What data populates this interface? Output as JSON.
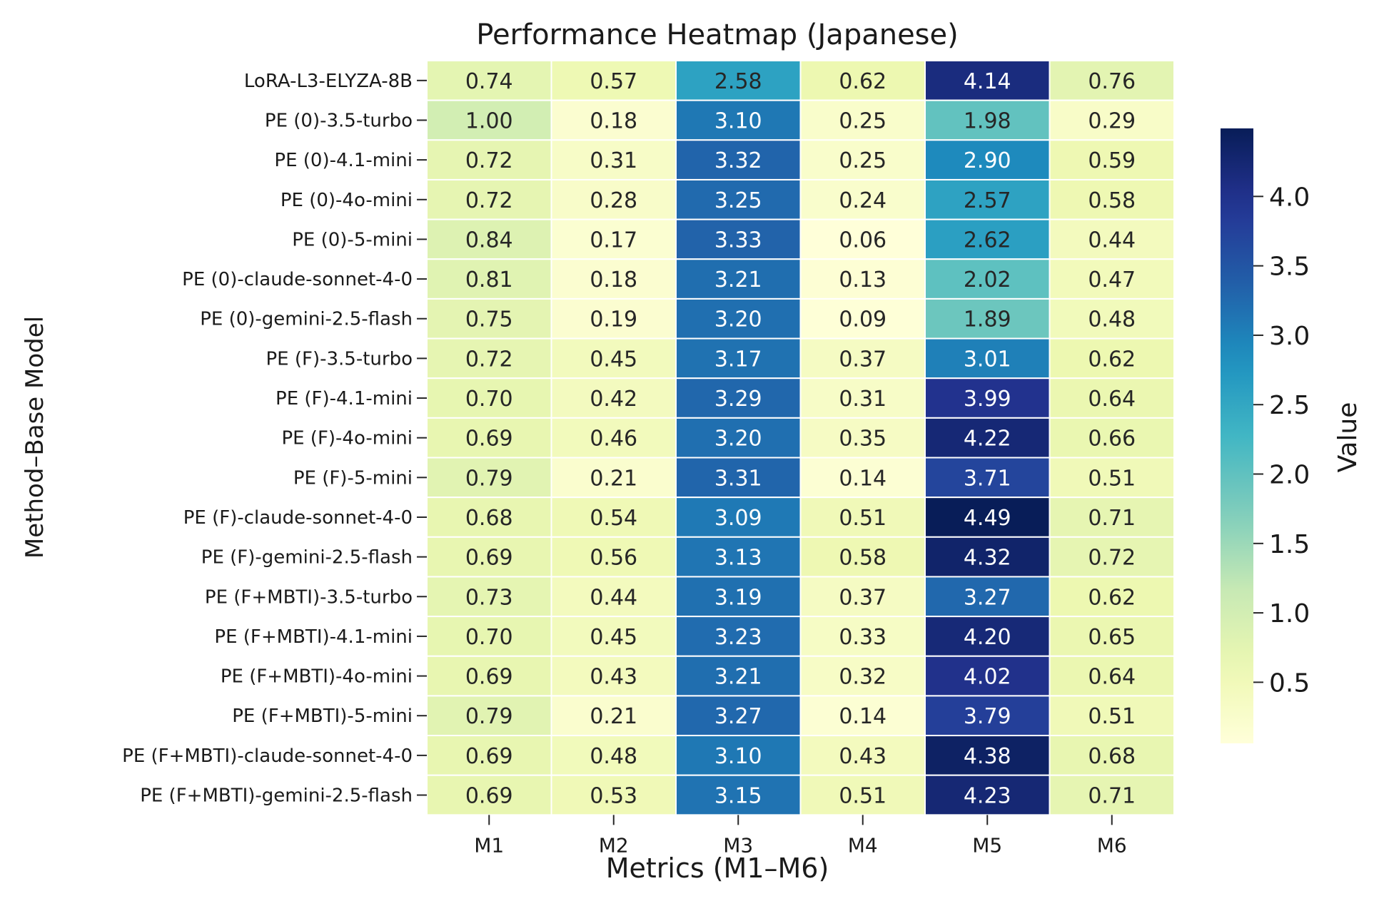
{
  "chart_data": {
    "type": "heatmap",
    "title": "Performance Heatmap (Japanese)",
    "xlabel": "Metrics (M1–M6)",
    "ylabel": "Method–Base Model",
    "x_categories": [
      "M1",
      "M2",
      "M3",
      "M4",
      "M5",
      "M6"
    ],
    "y_categories": [
      "LoRA-L3-ELYZA-8B",
      "PE (0)-3.5-turbo",
      "PE (0)-4.1-mini",
      "PE (0)-4o-mini",
      "PE (0)-5-mini",
      "PE (0)-claude-sonnet-4-0",
      "PE (0)-gemini-2.5-flash",
      "PE (F)-3.5-turbo",
      "PE (F)-4.1-mini",
      "PE (F)-4o-mini",
      "PE (F)-5-mini",
      "PE (F)-claude-sonnet-4-0",
      "PE (F)-gemini-2.5-flash",
      "PE (F+MBTI)-3.5-turbo",
      "PE (F+MBTI)-4.1-mini",
      "PE (F+MBTI)-4o-mini",
      "PE (F+MBTI)-5-mini",
      "PE (F+MBTI)-claude-sonnet-4-0",
      "PE (F+MBTI)-gemini-2.5-flash"
    ],
    "values": [
      [
        0.74,
        0.57,
        2.58,
        0.62,
        4.14,
        0.76
      ],
      [
        1.0,
        0.18,
        3.1,
        0.25,
        1.98,
        0.29
      ],
      [
        0.72,
        0.31,
        3.32,
        0.25,
        2.9,
        0.59
      ],
      [
        0.72,
        0.28,
        3.25,
        0.24,
        2.57,
        0.58
      ],
      [
        0.84,
        0.17,
        3.33,
        0.06,
        2.62,
        0.44
      ],
      [
        0.81,
        0.18,
        3.21,
        0.13,
        2.02,
        0.47
      ],
      [
        0.75,
        0.19,
        3.2,
        0.09,
        1.89,
        0.48
      ],
      [
        0.72,
        0.45,
        3.17,
        0.37,
        3.01,
        0.62
      ],
      [
        0.7,
        0.42,
        3.29,
        0.31,
        3.99,
        0.64
      ],
      [
        0.69,
        0.46,
        3.2,
        0.35,
        4.22,
        0.66
      ],
      [
        0.79,
        0.21,
        3.31,
        0.14,
        3.71,
        0.51
      ],
      [
        0.68,
        0.54,
        3.09,
        0.51,
        4.49,
        0.71
      ],
      [
        0.69,
        0.56,
        3.13,
        0.58,
        4.32,
        0.72
      ],
      [
        0.73,
        0.44,
        3.19,
        0.37,
        3.27,
        0.62
      ],
      [
        0.7,
        0.45,
        3.23,
        0.33,
        4.2,
        0.65
      ],
      [
        0.69,
        0.43,
        3.21,
        0.32,
        4.02,
        0.64
      ],
      [
        0.79,
        0.21,
        3.27,
        0.14,
        3.79,
        0.51
      ],
      [
        0.69,
        0.48,
        3.1,
        0.43,
        4.38,
        0.68
      ],
      [
        0.69,
        0.53,
        3.15,
        0.51,
        4.23,
        0.71
      ]
    ],
    "value_format": "2 decimals",
    "colormap": "YlGnBu",
    "colormap_stops": [
      "#ffffd9",
      "#edf8b1",
      "#c7e9b4",
      "#7fcdbb",
      "#41b6c4",
      "#1d91c0",
      "#225ea8",
      "#253494",
      "#081d58"
    ],
    "vmin": 0.06,
    "vmax": 4.49,
    "colorbar": {
      "label": "Value",
      "ticks": [
        0.5,
        1.0,
        1.5,
        2.0,
        2.5,
        3.0,
        3.5,
        4.0
      ],
      "tick_labels": [
        "0.5",
        "1.0",
        "1.5",
        "2.0",
        "2.5",
        "3.0",
        "3.5",
        "4.0"
      ],
      "placement": "right"
    },
    "cell_border_color": "#ffffff"
  }
}
